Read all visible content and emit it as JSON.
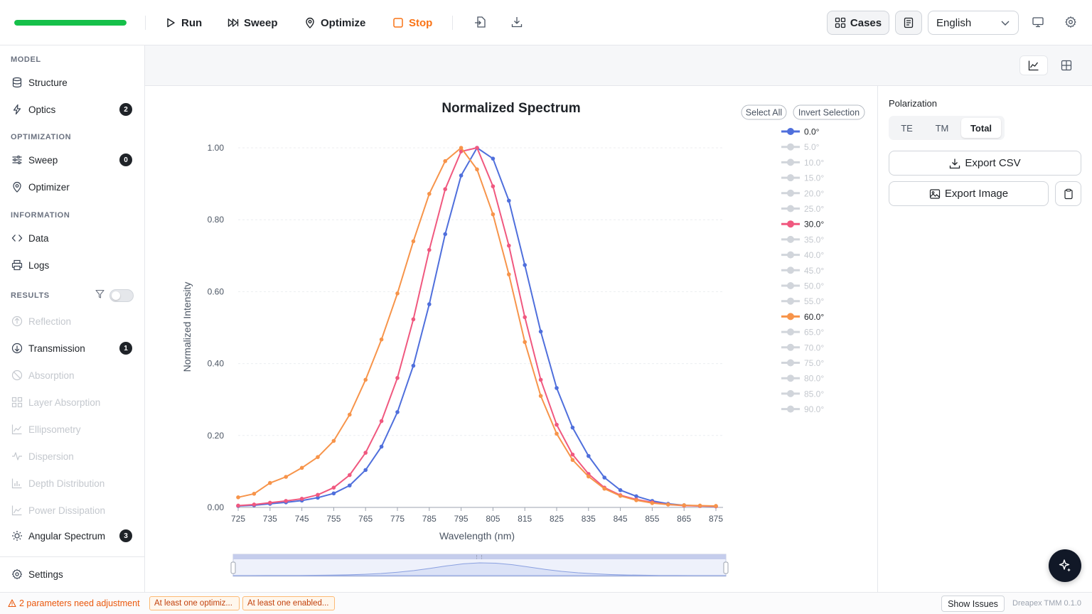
{
  "toolbar": {
    "progress_fraction": 1.0,
    "run_label": "Run",
    "sweep_label": "Sweep",
    "optimize_label": "Optimize",
    "stop_label": "Stop",
    "cases_label": "Cases",
    "language": "English",
    "progress_color": "#16c04a",
    "stop_color": "#f97316"
  },
  "sidebar": {
    "model_heading": "MODEL",
    "structure": "Structure",
    "optics": "Optics",
    "optics_badge": "2",
    "optimization_heading": "OPTIMIZATION",
    "sweep": "Sweep",
    "sweep_badge": "0",
    "optimizer": "Optimizer",
    "information_heading": "INFORMATION",
    "data": "Data",
    "logs": "Logs",
    "results_heading": "RESULTS",
    "reflection": "Reflection",
    "transmission": "Transmission",
    "transmission_badge": "1",
    "absorption": "Absorption",
    "layer_absorption": "Layer Absorption",
    "ellipsometry": "Ellipsometry",
    "dispersion": "Dispersion",
    "depth_distribution": "Depth Distribution",
    "power_dissipation": "Power Dissipation",
    "angular_spectrum": "Angular Spectrum",
    "angular_badge": "3",
    "settings": "Settings"
  },
  "panel": {
    "polarization_label": "Polarization",
    "te": "TE",
    "tm": "TM",
    "total": "Total",
    "export_csv": "Export CSV",
    "export_image": "Export Image"
  },
  "status": {
    "warning": "2 parameters need adjustment",
    "chip1": "At least one optimiz...",
    "chip2": "At least one enabled...",
    "show_issues": "Show Issues",
    "version": "Dreapex TMM 0.1.0"
  },
  "legend_controls": {
    "select_all": "Select All",
    "invert_selection": "Invert Selection"
  },
  "chart_data": {
    "type": "line",
    "title": "Normalized Spectrum",
    "xlabel": "Wavelength (nm)",
    "ylabel": "Normalized Intensity",
    "xlim": [
      725,
      875
    ],
    "ylim": [
      0,
      1
    ],
    "x_ticks": [
      "725",
      "735",
      "745",
      "755",
      "765",
      "775",
      "785",
      "795",
      "805",
      "815",
      "825",
      "835",
      "845",
      "855",
      "865",
      "875"
    ],
    "y_ticks": [
      "0.00",
      "0.20",
      "0.40",
      "0.60",
      "0.80",
      "1.00"
    ],
    "grid": true,
    "legend_position": "right",
    "legend": [
      "0.0°",
      "5.0°",
      "10.0°",
      "15.0°",
      "20.0°",
      "25.0°",
      "30.0°",
      "35.0°",
      "40.0°",
      "45.0°",
      "50.0°",
      "55.0°",
      "60.0°",
      "65.0°",
      "70.0°",
      "75.0°",
      "80.0°",
      "85.0°",
      "90.0°"
    ],
    "legend_active": [
      "0.0°",
      "30.0°",
      "60.0°"
    ],
    "x": [
      725,
      730,
      735,
      740,
      745,
      750,
      755,
      760,
      765,
      770,
      775,
      780,
      785,
      790,
      795,
      800,
      805,
      810,
      815,
      820,
      825,
      830,
      835,
      840,
      845,
      850,
      855,
      860,
      865,
      870,
      875
    ],
    "series": [
      {
        "name": "0.0°",
        "color": "#4f6fdc",
        "values": [
          0.004,
          0.006,
          0.01,
          0.014,
          0.019,
          0.027,
          0.039,
          0.061,
          0.104,
          0.169,
          0.265,
          0.394,
          0.565,
          0.76,
          0.923,
          1.0,
          0.97,
          0.853,
          0.674,
          0.489,
          0.332,
          0.222,
          0.143,
          0.083,
          0.048,
          0.031,
          0.018,
          0.01,
          0.006,
          0.004,
          0.003
        ]
      },
      {
        "name": "30.0°",
        "color": "#f0587f",
        "values": [
          0.005,
          0.008,
          0.013,
          0.018,
          0.024,
          0.035,
          0.055,
          0.09,
          0.152,
          0.24,
          0.36,
          0.523,
          0.716,
          0.885,
          0.99,
          1.0,
          0.893,
          0.728,
          0.529,
          0.355,
          0.23,
          0.147,
          0.093,
          0.055,
          0.034,
          0.022,
          0.014,
          0.008,
          0.005,
          0.004,
          0.003
        ]
      },
      {
        "name": "60.0°",
        "color": "#f7944a",
        "values": [
          0.028,
          0.038,
          0.068,
          0.085,
          0.11,
          0.14,
          0.185,
          0.258,
          0.355,
          0.467,
          0.595,
          0.74,
          0.872,
          0.963,
          1.0,
          0.94,
          0.815,
          0.648,
          0.46,
          0.31,
          0.205,
          0.132,
          0.086,
          0.052,
          0.032,
          0.02,
          0.012,
          0.008,
          0.006,
          0.005,
          0.004
        ]
      }
    ]
  }
}
